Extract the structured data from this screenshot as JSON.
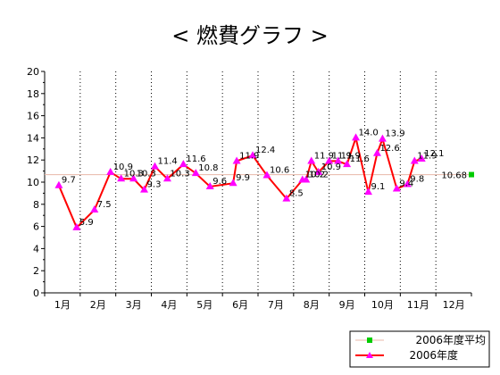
{
  "chart_data": {
    "type": "line",
    "title": "< 燃費グラフ >",
    "ylim": [
      0,
      20
    ],
    "yticks": [
      "0",
      "2",
      "4",
      "6",
      "8",
      "10",
      "12",
      "14",
      "16",
      "18",
      "20"
    ],
    "x_range": [
      0.5,
      12.5
    ],
    "month_labels": [
      "1月",
      "2月",
      "3月",
      "4月",
      "5月",
      "6月",
      "7月",
      "8月",
      "9月",
      "10月",
      "11月",
      "12月"
    ],
    "grid": "vertical-dotted",
    "legend_placement": "bottom-right",
    "series": [
      {
        "name": "2006年度",
        "color": "#ff00ff",
        "line_color": "#ff0000",
        "points": [
          {
            "x": 0.9,
            "y": 9.7,
            "label": "9.7"
          },
          {
            "x": 1.4,
            "y": 5.9,
            "label": "5.9"
          },
          {
            "x": 1.9,
            "y": 7.5,
            "label": "7.5"
          },
          {
            "x": 2.35,
            "y": 10.9,
            "label": "10.9"
          },
          {
            "x": 2.65,
            "y": 10.3,
            "label": "10.3"
          },
          {
            "x": 3.0,
            "y": 10.3,
            "label": "10.3"
          },
          {
            "x": 3.3,
            "y": 9.3,
            "label": "9.3"
          },
          {
            "x": 3.6,
            "y": 11.4,
            "label": "11.4"
          },
          {
            "x": 3.95,
            "y": 10.3,
            "label": "10.3"
          },
          {
            "x": 4.4,
            "y": 11.6,
            "label": "11.6"
          },
          {
            "x": 4.75,
            "y": 10.8,
            "label": "10.8"
          },
          {
            "x": 5.15,
            "y": 9.6,
            "label": "9.6"
          },
          {
            "x": 5.8,
            "y": 9.9,
            "label": "9.9"
          },
          {
            "x": 5.9,
            "y": 11.9,
            "label": "11.9"
          },
          {
            "x": 6.35,
            "y": 12.4,
            "label": "12.4"
          },
          {
            "x": 6.75,
            "y": 10.6,
            "label": "10.6"
          },
          {
            "x": 7.3,
            "y": 8.5,
            "label": "8.5"
          },
          {
            "x": 7.75,
            "y": 10.2,
            "label": "10.2"
          },
          {
            "x": 7.85,
            "y": 10.2,
            "label": "10.2"
          },
          {
            "x": 8.0,
            "y": 11.9,
            "label": "11.9"
          },
          {
            "x": 8.2,
            "y": 10.9,
            "label": "10.9"
          },
          {
            "x": 8.5,
            "y": 11.9,
            "label": "11.9"
          },
          {
            "x": 8.75,
            "y": 11.9,
            "label": "11.9"
          },
          {
            "x": 9.0,
            "y": 11.6,
            "label": "11.6"
          },
          {
            "x": 9.25,
            "y": 14.0,
            "label": "14.0"
          },
          {
            "x": 9.6,
            "y": 9.1,
            "label": "9.1"
          },
          {
            "x": 9.85,
            "y": 12.6,
            "label": "12.6"
          },
          {
            "x": 10.0,
            "y": 13.9,
            "label": "13.9"
          },
          {
            "x": 10.4,
            "y": 9.4,
            "label": "9.4"
          },
          {
            "x": 10.7,
            "y": 9.8,
            "label": "9.8"
          },
          {
            "x": 10.9,
            "y": 11.9,
            "label": "11.9"
          },
          {
            "x": 11.1,
            "y": 12.1,
            "label": "12.1"
          }
        ]
      },
      {
        "name": "2006年度平均",
        "color": "#00cc00",
        "line_color": "#e8b8a8",
        "value": 10.68,
        "label": "10.68"
      }
    ]
  }
}
